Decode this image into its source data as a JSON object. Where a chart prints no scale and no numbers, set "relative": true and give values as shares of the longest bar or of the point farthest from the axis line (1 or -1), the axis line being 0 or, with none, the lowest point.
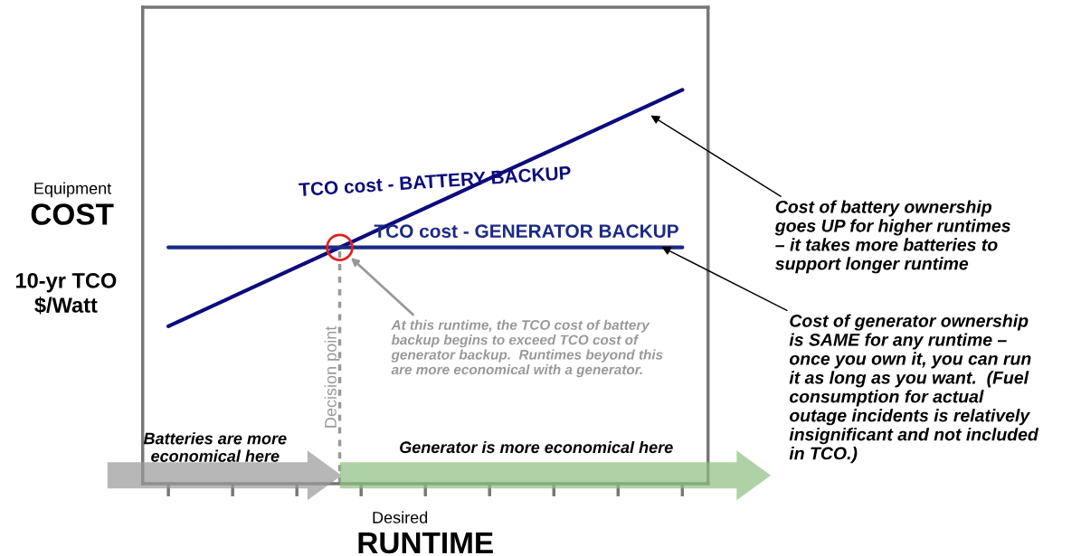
{
  "chart_data": {
    "type": "line",
    "relative": true,
    "xlabel": "RUNTIME",
    "ylabel": "COST",
    "categories": [
      null,
      null,
      null,
      null,
      null,
      null,
      null,
      null,
      null
    ],
    "tick_labels": false,
    "series": [
      {
        "name": "TCO cost - BATTERY BACKUP",
        "color": "#0c0c7c",
        "values": [
          0.4,
          0.475,
          0.55,
          0.625,
          0.7,
          0.775,
          0.85,
          0.925,
          1.0
        ]
      },
      {
        "name": "TCO cost - GENERATOR BACKUP",
        "color": "#1c2a84",
        "values": [
          0.6,
          0.6,
          0.6,
          0.6,
          0.6,
          0.6,
          0.6,
          0.6,
          0.6
        ]
      }
    ],
    "ref_lines": [
      {
        "axis": "x",
        "label": "Decision point",
        "color": "#999999",
        "line_style": "dotted"
      }
    ],
    "annotations": [
      "Equipment",
      "10-yr TCO\n$/Watt",
      "Desired",
      "At this runtime, the TCO cost of battery\nbackup begins to exceed TCO cost of\ngenerator backup.  Runtimes beyond this\nare more economical with a generator.",
      "Cost of battery ownership\ngoes UP for higher runtimes\n– it takes more batteries to\nsupport longer runtime",
      "Cost of generator ownership\nis SAME for any runtime –\nonce you own it, you can run\nit as long as you want.  (Fuel\nconsumption for actual\noutage incidents is relatively\ninsignificant and not included\nin TCO.)",
      "Batteries are more\neconomical here",
      "Generator is more economical here"
    ]
  }
}
